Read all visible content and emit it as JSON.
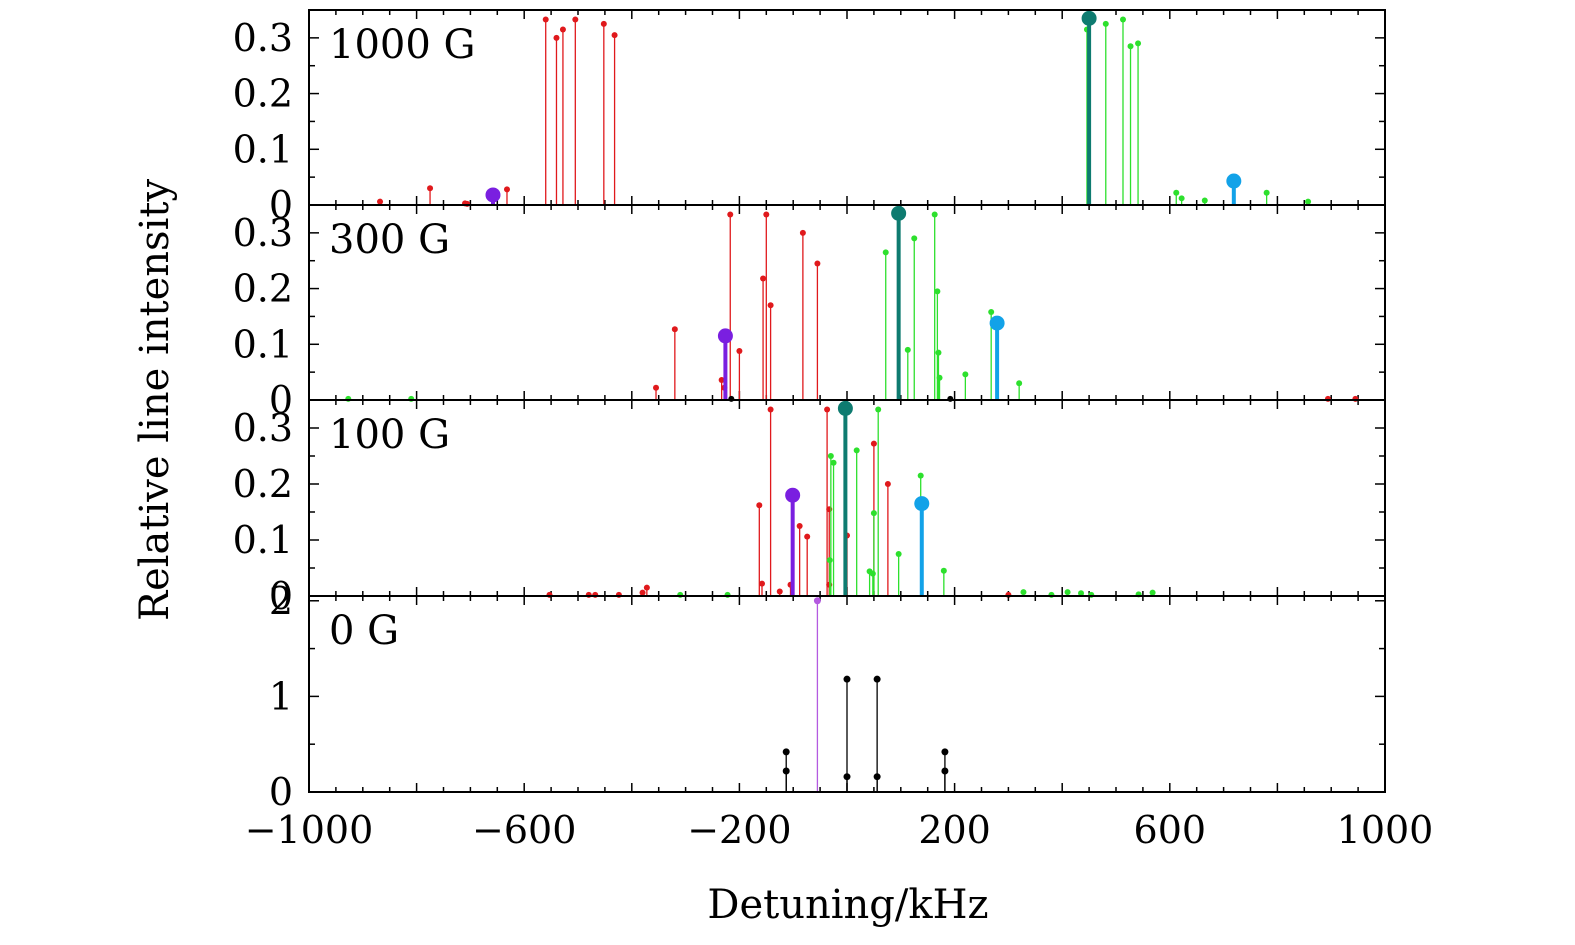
{
  "chart_data": {
    "type": "stem",
    "xlabel": "Detuning/kHz",
    "ylabel": "Relative line intensity",
    "xlim": [
      -1000,
      1000
    ],
    "xticks": [
      -1000,
      -600,
      -200,
      200,
      600,
      1000
    ],
    "xtick_labels": [
      "−1000",
      "−600",
      "−200",
      "200",
      "600",
      "1000"
    ],
    "colors": {
      "red": "#e0191c",
      "green": "#2de02d",
      "purple": "#7a1fe0",
      "teal": "#0e7b70",
      "blue": "#12a2e8",
      "black": "#000000",
      "violet": "#b45ae0"
    },
    "panels": [
      {
        "label": "1000 G",
        "ylim": [
          0,
          0.35
        ],
        "yticks": [
          0,
          0.1,
          0.2,
          0.3
        ],
        "ytick_labels": [
          "0",
          "0.1",
          "0.2",
          "0.3"
        ],
        "series": [
          {
            "name": "red",
            "color": "#e0191c",
            "points": [
              [
                -868,
                0.006
              ],
              [
                -775,
                0.03
              ],
              [
                -710,
                0.003
              ],
              [
                -706,
                0.002
              ],
              [
                -632,
                0.028
              ],
              [
                -560,
                0.333
              ],
              [
                -540,
                0.3
              ],
              [
                -528,
                0.315
              ],
              [
                -505,
                0.333
              ],
              [
                -452,
                0.325
              ],
              [
                -432,
                0.305
              ]
            ]
          },
          {
            "name": "green",
            "color": "#2de02d",
            "points": [
              [
                446,
                0.315
              ],
              [
                481,
                0.325
              ],
              [
                513,
                0.333
              ],
              [
                527,
                0.285
              ],
              [
                541,
                0.29
              ],
              [
                612,
                0.022
              ],
              [
                622,
                0.012
              ],
              [
                665,
                0.008
              ],
              [
                780,
                0.022
              ],
              [
                857,
                0.006
              ]
            ]
          },
          {
            "name": "purple",
            "color": "#7a1fe0",
            "points": [
              [
                -658,
                0.018
              ]
            ]
          },
          {
            "name": "teal",
            "color": "#0e7b70",
            "points": [
              [
                450,
                0.335
              ]
            ]
          },
          {
            "name": "blue",
            "color": "#12a2e8",
            "points": [
              [
                719,
                0.043
              ]
            ]
          }
        ]
      },
      {
        "label": "300 G",
        "ylim": [
          0,
          0.35
        ],
        "yticks": [
          0,
          0.1,
          0.2,
          0.3
        ],
        "ytick_labels": [
          "0",
          "0.1",
          "0.2",
          "0.3"
        ],
        "series": [
          {
            "name": "red",
            "color": "#e0191c",
            "points": [
              [
                -355,
                0.022
              ],
              [
                -320,
                0.127
              ],
              [
                -233,
                0.036
              ],
              [
                -228,
                0.022
              ],
              [
                -217,
                0.333
              ],
              [
                -200,
                0.088
              ],
              [
                -156,
                0.218
              ],
              [
                -150,
                0.333
              ],
              [
                -142,
                0.17
              ],
              [
                -82,
                0.3
              ],
              [
                -55,
                0.245
              ],
              [
                894,
                0.002
              ],
              [
                945,
                0.002
              ]
            ]
          },
          {
            "name": "green",
            "color": "#2de02d",
            "points": [
              [
                -927,
                0.002
              ],
              [
                -810,
                0.002
              ],
              [
                72,
                0.265
              ],
              [
                113,
                0.09
              ],
              [
                125,
                0.29
              ],
              [
                163,
                0.333
              ],
              [
                168,
                0.195
              ],
              [
                170,
                0.085
              ],
              [
                172,
                0.04
              ],
              [
                220,
                0.046
              ],
              [
                268,
                0.158
              ],
              [
                320,
                0.03
              ]
            ]
          },
          {
            "name": "purple",
            "color": "#7a1fe0",
            "points": [
              [
                -226,
                0.115
              ]
            ]
          },
          {
            "name": "teal",
            "color": "#0e7b70",
            "points": [
              [
                96,
                0.335
              ]
            ]
          },
          {
            "name": "blue",
            "color": "#12a2e8",
            "points": [
              [
                279,
                0.138
              ]
            ]
          },
          {
            "name": "black",
            "color": "#000000",
            "points": [
              [
                -215,
                0.002
              ],
              [
                192,
                0.002
              ]
            ]
          }
        ]
      },
      {
        "label": "100 G",
        "ylim": [
          0,
          0.35
        ],
        "yticks": [
          0,
          0.1,
          0.2,
          0.3
        ],
        "ytick_labels": [
          "0",
          "0.1",
          "0.2",
          "0.3"
        ],
        "series": [
          {
            "name": "red",
            "color": "#e0191c",
            "points": [
              [
                -553,
                0.002
              ],
              [
                -480,
                0.002
              ],
              [
                -468,
                0.002
              ],
              [
                -424,
                0.002
              ],
              [
                -380,
                0.006
              ],
              [
                -372,
                0.015
              ],
              [
                -163,
                0.162
              ],
              [
                -158,
                0.022
              ],
              [
                -142,
                0.333
              ],
              [
                -125,
                0.008
              ],
              [
                -105,
                0.02
              ],
              [
                -88,
                0.125
              ],
              [
                -74,
                0.106
              ],
              [
                -37,
                0.333
              ],
              [
                -33,
                0.155
              ],
              [
                -33,
                0.02
              ],
              [
                0,
                0.108
              ],
              [
                50,
                0.272
              ],
              [
                76,
                0.2
              ],
              [
                300,
                0.002
              ]
            ]
          },
          {
            "name": "green",
            "color": "#2de02d",
            "points": [
              [
                -310,
                0.002
              ],
              [
                -222,
                0.002
              ],
              [
                -32,
                0.064
              ],
              [
                -30,
                0.25
              ],
              [
                -25,
                0.238
              ],
              [
                18,
                0.26
              ],
              [
                42,
                0.044
              ],
              [
                48,
                0.04
              ],
              [
                50,
                0.148
              ],
              [
                58,
                0.333
              ],
              [
                96,
                0.075
              ],
              [
                137,
                0.215
              ],
              [
                180,
                0.045
              ],
              [
                328,
                0.007
              ],
              [
                380,
                0.002
              ],
              [
                410,
                0.007
              ],
              [
                435,
                0.005
              ],
              [
                454,
                0.002
              ],
              [
                542,
                0.003
              ],
              [
                568,
                0.006
              ]
            ]
          },
          {
            "name": "purple",
            "color": "#7a1fe0",
            "points": [
              [
                -101,
                0.18
              ]
            ]
          },
          {
            "name": "teal",
            "color": "#0e7b70",
            "points": [
              [
                -3,
                0.335
              ]
            ]
          },
          {
            "name": "blue",
            "color": "#12a2e8",
            "points": [
              [
                139,
                0.165
              ]
            ]
          }
        ]
      },
      {
        "label": "0 G",
        "ylim": [
          0,
          2.05
        ],
        "yticks": [
          0,
          1,
          2
        ],
        "ytick_labels": [
          "0",
          "1",
          "2"
        ],
        "series": [
          {
            "name": "black",
            "color": "#000000",
            "points": [
              [
                -113,
                0.42
              ],
              [
                -113,
                0.22
              ],
              [
                0,
                1.18
              ],
              [
                0,
                0.16
              ],
              [
                56,
                1.18
              ],
              [
                56,
                0.16
              ],
              [
                182,
                0.42
              ],
              [
                182,
                0.22
              ]
            ]
          },
          {
            "name": "violet",
            "color": "#b45ae0",
            "points": [
              [
                -55,
                2.0
              ]
            ]
          }
        ]
      }
    ]
  }
}
